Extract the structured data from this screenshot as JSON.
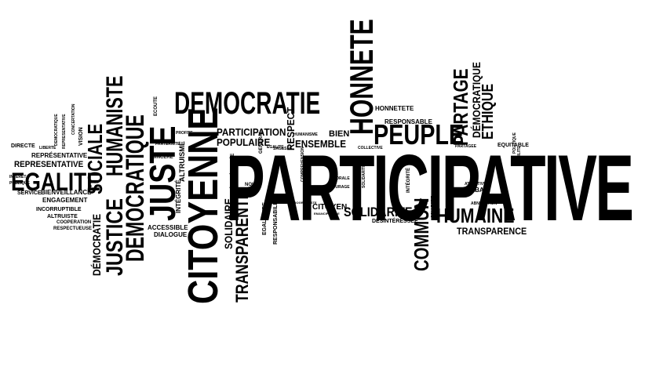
{
  "words": {
    "participative": "PARTICIPATIVE",
    "citoyenne": "CITOYENNE",
    "democratie": "DEMOCRATIE",
    "honnete": "HONNETE",
    "peuple": "PEUPLE",
    "egalite": "EGALITE",
    "juste": "JUSTE",
    "democratique": "DEMOCRATIQUE",
    "justice": "JUSTICE",
    "sociale": "SOCIALE",
    "humaniste": "HUMANISTE",
    "transparente": "TRANSPARENTE",
    "commun": "COMMUN",
    "humaine": "HUMAINE",
    "partage": "PARTAGE",
    "solidarite": "SOLIDARITE",
    "participation": "PARTICIPATION",
    "populaire": "POPULAIRE",
    "ensemble": "ENSEMBLE",
    "respect": "RESPECT",
    "ethique": "ETHIQUE",
    "democratique_acc": "DÉMOCRATIQUE",
    "democratie_acc": "DÉMOCRATIE",
    "transparence": "TRANSPARENCE",
    "representative": "REPRESENTATIVE",
    "representative_acc": "REPRÉSENTATIVE",
    "honnetete": "HONNETETE",
    "responsable": "RESPONSABLE",
    "bien": "BIEN",
    "citoyen": "CITOYEN",
    "desinteressee": "DÉSINTÉRESSÉE",
    "solidaire": "SOLIDAIRE",
    "accessible": "ACCESSIBLE",
    "dialogue": "DIALOGUE",
    "engagement": "ENGAGEMENT",
    "bienveillance": "BIENVEILLANCE",
    "service": "SERVICE",
    "incorruptible": "INCORRUPTIBLE",
    "altruiste": "ALTRUISTE",
    "cooperation": "COOPERATION",
    "respectueuse": "RESPECTUEUSE",
    "directe": "DIRECTE",
    "liberte": "LIBERTÉ",
    "integrite": "INTÉGRITÉ",
    "altruisme": "ALTRUISME",
    "sincere": "SINCERE",
    "fraternite": "FRATERNITE",
    "ecoute": "ECOUTE",
    "egalitaire": "EGALITAIRE",
    "responsabilite": "RESPONSABILITE",
    "general": "GENERAL",
    "nous": "NOUS",
    "collectif": "COLLECTIF",
    "equitable": "EQUITABLE",
    "abnegation": "ABNEGATION",
    "debat": "DEBAT",
    "courage": "COURAGE",
    "morale": "MORALE",
    "sagesse": "SAGESSE",
    "egalite_small": "EGALITE",
    "collective": "COLLECTIVE",
    "humanisme": "HUMANISME",
    "interet": "INTERET",
    "publique": "PUBLIQUE",
    "vision": "VISION",
    "solidarite_small": "SOLIDARITE",
    "emancipatrice": "EMANCIPATRICE",
    "attentive": "ATTENTIVE",
    "concertation": "CONCERTATION",
    "partagee": "PARTAGEE",
    "politique": "POLITIQUE",
    "democratique_small": "DEMOCRATIQUE",
    "representative_small": "REPRESENTATIVE",
    "profite": "PROFITE",
    "progressiste": "PROGRESSISTE",
    "comprehension": "COMPREHENSION",
    "humilite": "HUMILITE"
  }
}
